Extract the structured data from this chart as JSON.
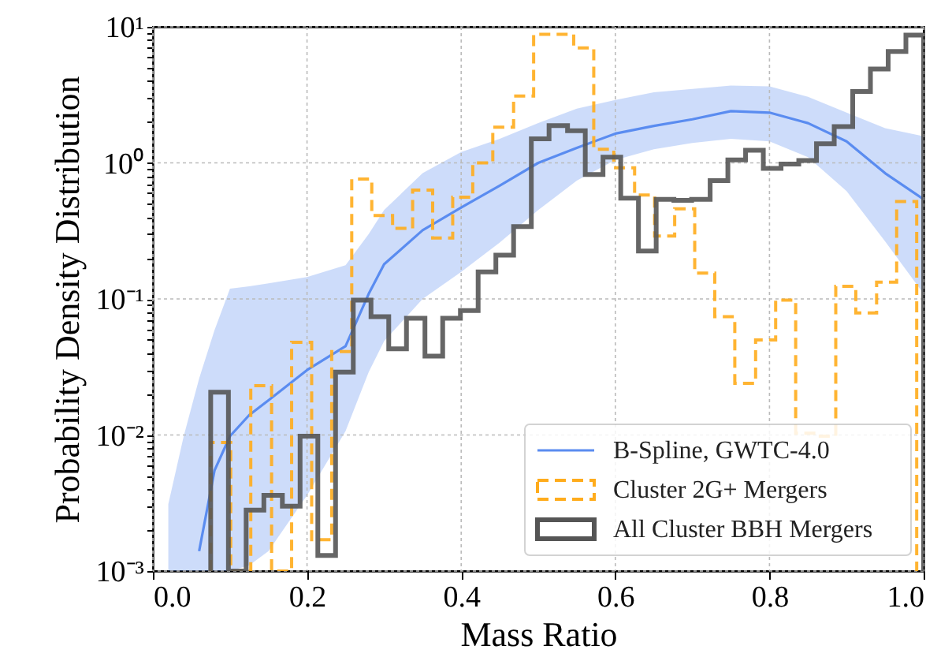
{
  "chart_data": {
    "type": "histogram",
    "xlabel": "Mass Ratio",
    "ylabel": "Probability Density Distribution",
    "xlim": [
      0,
      1
    ],
    "xticks": [
      {
        "value": 0,
        "label": "0.0"
      },
      0.2,
      0.4,
      0.6,
      0.8,
      {
        "value": 1,
        "label": "1.0"
      }
    ],
    "ylim": [
      0.001,
      10
    ],
    "log": true,
    "grid": true,
    "legend": "bottom right",
    "yticks": [
      {
        "value": 0.001,
        "label": "10⁻³"
      },
      {
        "value": 0.002,
        "label": null
      },
      {
        "value": 0.003,
        "label": null
      },
      {
        "value": 0.004,
        "label": null
      },
      {
        "value": 0.005,
        "label": null
      },
      {
        "value": 0.006,
        "label": null
      },
      {
        "value": 0.007,
        "label": null
      },
      {
        "value": 0.008,
        "label": null
      },
      {
        "value": 0.009,
        "label": null
      },
      {
        "value": 0.01,
        "label": "10⁻²"
      },
      {
        "value": 0.02,
        "label": null
      },
      {
        "value": 0.03,
        "label": null
      },
      {
        "value": 0.04,
        "label": null
      },
      {
        "value": 0.05,
        "label": null
      },
      {
        "value": 0.06,
        "label": null
      },
      {
        "value": 0.07,
        "label": null
      },
      {
        "value": 0.08,
        "label": null
      },
      {
        "value": 0.09,
        "label": null
      },
      {
        "value": 0.1,
        "label": "10⁻¹"
      },
      {
        "value": 0.2,
        "label": null
      },
      {
        "value": 0.3,
        "label": null
      },
      {
        "value": 0.4,
        "label": null
      },
      {
        "value": 0.5,
        "label": null
      },
      {
        "value": 0.6,
        "label": null
      },
      {
        "value": 0.7,
        "label": null
      },
      {
        "value": 0.8,
        "label": null
      },
      {
        "value": 0.9,
        "label": null
      },
      {
        "value": 1,
        "label": "10⁰"
      },
      {
        "value": 2,
        "label": null
      },
      {
        "value": 3,
        "label": null
      },
      {
        "value": 4,
        "label": null
      },
      {
        "value": 5,
        "label": null
      },
      {
        "value": 6,
        "label": null
      },
      {
        "value": 7,
        "label": null
      },
      {
        "value": 8,
        "label": null
      },
      {
        "value": 9,
        "label": null
      },
      {
        "value": 10,
        "label": "10¹"
      }
    ],
    "series": [
      {
        "name": "B-Spline, GWTC-4.0",
        "type": "line",
        "color": "#5a8cf0",
        "x": [
          0.02,
          0.04,
          0.06,
          0.08,
          0.1,
          0.125,
          0.15,
          0.2,
          0.25,
          0.28,
          0.3,
          0.35,
          0.4,
          0.45,
          0.5,
          0.55,
          0.6,
          0.65,
          0.7,
          0.75,
          0.8,
          0.85,
          0.9,
          0.95,
          1.0
        ],
        "values": [
          null,
          null,
          0.0014,
          0.0055,
          0.0098,
          0.014,
          0.018,
          0.03,
          0.045,
          0.109,
          0.18,
          0.32,
          0.47,
          0.68,
          1.0,
          1.29,
          1.64,
          1.87,
          2.09,
          2.4,
          2.34,
          1.96,
          1.44,
          0.84,
          0.54
        ],
        "upper": [
          0.0031,
          0.0098,
          0.026,
          0.059,
          0.119,
          0.124,
          0.13,
          0.145,
          0.177,
          0.3,
          0.45,
          0.84,
          1.2,
          1.5,
          1.96,
          2.5,
          2.9,
          3.3,
          3.5,
          3.7,
          3.65,
          3.06,
          2.34,
          1.8,
          1.57
        ],
        "lower": [
          0.001,
          0.001,
          0.001,
          0.001,
          0.001,
          0.0011,
          0.0014,
          0.0036,
          0.0107,
          0.029,
          0.049,
          0.1,
          0.158,
          0.26,
          0.45,
          0.74,
          1.05,
          1.26,
          1.4,
          1.5,
          1.44,
          1.1,
          0.62,
          0.265,
          0.109
        ]
      },
      {
        "name": "Cluster 2G+ Mergers",
        "type": "histogram",
        "color": "#ffac1c",
        "line_style": "dashed",
        "bins": [
          0.075,
          0.101,
          0.127,
          0.154,
          0.18,
          0.206,
          0.232,
          0.258,
          0.284,
          0.311,
          0.337,
          0.363,
          0.389,
          0.415,
          0.441,
          0.468,
          0.494,
          0.52,
          0.546,
          0.572,
          0.598,
          0.625,
          0.651,
          0.677,
          0.703,
          0.729,
          0.755,
          0.782,
          0.808,
          0.834,
          0.86,
          0.886,
          0.912,
          0.939,
          0.965,
          0.991
        ],
        "values": [
          0.0088,
          null,
          0.023,
          null,
          0.048,
          0.0017,
          0.041,
          0.76,
          0.41,
          0.33,
          0.63,
          0.28,
          0.56,
          1.0,
          1.83,
          3.1,
          8.8,
          8.8,
          7.0,
          1.26,
          0.92,
          0.58,
          0.29,
          0.46,
          0.155,
          0.074,
          0.024,
          0.05,
          0.098,
          0.0103,
          0.0098,
          0.124,
          0.079,
          0.133,
          0.52
        ]
      },
      {
        "name": "All Cluster BBH Mergers",
        "color": "#555555",
        "bins": [
          0.075,
          0.098,
          0.121,
          0.144,
          0.168,
          0.191,
          0.214,
          0.237,
          0.26,
          0.283,
          0.306,
          0.329,
          0.353,
          0.376,
          0.399,
          0.422,
          0.445,
          0.468,
          0.491,
          0.514,
          0.538,
          0.561,
          0.584,
          0.607,
          0.63,
          0.653,
          0.676,
          0.699,
          0.723,
          0.746,
          0.769,
          0.792,
          0.815,
          0.838,
          0.861,
          0.884,
          0.908,
          0.931,
          0.954,
          0.977,
          1.0
        ],
        "values": [
          0.0206,
          null,
          0.0028,
          0.0036,
          0.003,
          0.0098,
          0.0013,
          0.029,
          0.098,
          0.074,
          0.043,
          0.072,
          0.038,
          0.072,
          0.082,
          0.158,
          0.21,
          0.34,
          1.5,
          1.88,
          1.72,
          0.82,
          1.1,
          0.55,
          0.225,
          0.54,
          0.53,
          0.54,
          0.74,
          1.05,
          1.24,
          0.91,
          0.98,
          1.04,
          1.38,
          1.85,
          3.35,
          4.9,
          6.6,
          8.7
        ]
      }
    ]
  }
}
